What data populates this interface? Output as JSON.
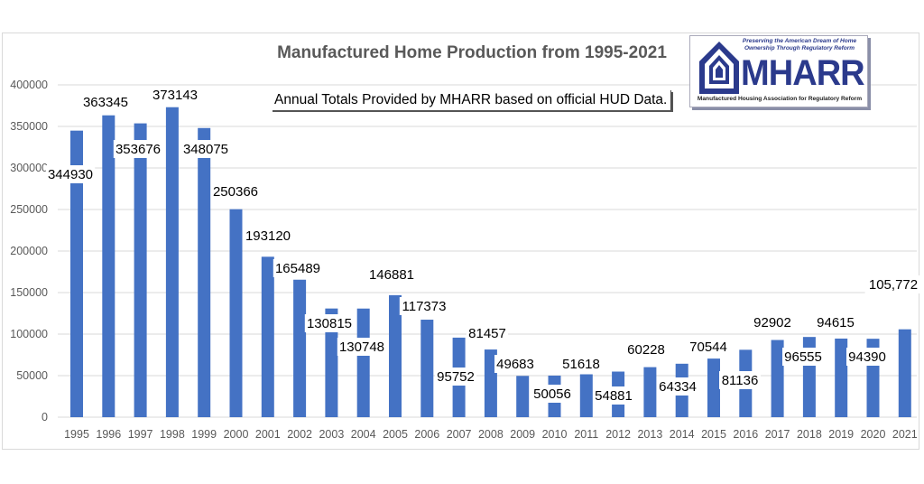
{
  "chart_data": {
    "type": "bar",
    "title": "Manufactured Home Production from 1995-2021",
    "subtitle": "Annual Totals Provided by MHARR based on official HUD Data.",
    "xlabel": "",
    "ylabel": "",
    "ylim": [
      0,
      400000
    ],
    "yticks": [
      "0",
      "50000",
      "100000",
      "150000",
      "200000",
      "250000",
      "300000",
      "350000",
      "400000"
    ],
    "grid": true,
    "bar_color": "#4472c4",
    "categories": [
      "1995",
      "1996",
      "1997",
      "1998",
      "1999",
      "2000",
      "2001",
      "2002",
      "2003",
      "2004",
      "2005",
      "2006",
      "2007",
      "2008",
      "2009",
      "2010",
      "2011",
      "2012",
      "2013",
      "2014",
      "2015",
      "2016",
      "2017",
      "2018",
      "2019",
      "2020",
      "2021"
    ],
    "values": [
      344930,
      363345,
      353676,
      373143,
      348075,
      250366,
      193120,
      165489,
      130815,
      130748,
      146881,
      117373,
      95752,
      81457,
      49683,
      50056,
      51618,
      54881,
      60228,
      64334,
      70544,
      81136,
      92902,
      96555,
      94615,
      94390,
      105772
    ],
    "data_labels": [
      "344930",
      "363345",
      "353676",
      "373143",
      "348075",
      "250366",
      "193120",
      "165489",
      "130815",
      "130748",
      "146881",
      "117373",
      "95752",
      "81457",
      "49683",
      "50056",
      "51618",
      "54881",
      "60228",
      "64334",
      "70544",
      "81136",
      "92902",
      "96555",
      "94615",
      "94390",
      "105,772"
    ]
  },
  "logo": {
    "tagline": "Preserving the American Dream of Home Ownership Through Regulatory Reform",
    "name": "MHARR",
    "full_name": "Manufactured Housing Association for Regulatory Reform",
    "color": "#2b3a8c"
  }
}
